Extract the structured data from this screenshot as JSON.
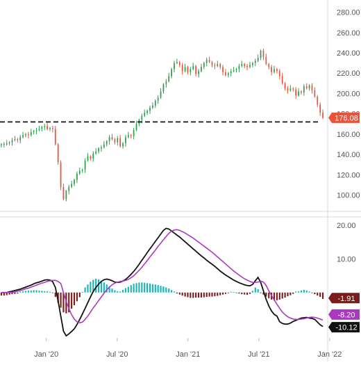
{
  "chart_data": [
    {
      "type": "candlestick",
      "panel": "price",
      "y_ticks": [
        100,
        120,
        140,
        160,
        180,
        200,
        220,
        240,
        260,
        280
      ],
      "y_tick_labels": [
        "100.00",
        "120.00",
        "140.00",
        "160.00",
        "180.00",
        "200.00",
        "220.00",
        "240.00",
        "260.00",
        "280.00"
      ],
      "ylim": [
        84,
        292
      ],
      "last_price": 176.08,
      "last_price_label": "176.08",
      "support_level": 172,
      "colors": {
        "up": "#2e9b4e",
        "down": "#e8533a",
        "support": "#111111",
        "last_badge": "#e8533a"
      },
      "series_close": [
        150,
        150,
        151,
        152,
        154,
        155,
        154,
        157,
        159,
        160,
        159,
        162,
        163,
        164,
        165,
        167,
        168,
        165,
        166,
        165,
        150,
        132,
        108,
        96,
        104,
        108,
        111,
        115,
        121,
        124,
        125,
        134,
        138,
        136,
        141,
        143,
        146,
        147,
        150,
        153,
        157,
        155,
        152,
        156,
        148,
        151,
        157,
        159,
        158,
        164,
        170,
        174,
        178,
        181,
        183,
        186,
        188,
        193,
        196,
        202,
        209,
        212,
        217,
        224,
        230,
        231,
        228,
        222,
        226,
        221,
        224,
        227,
        219,
        222,
        226,
        230,
        233,
        231,
        228,
        227,
        229,
        226,
        221,
        218,
        220,
        222,
        223,
        224,
        227,
        229,
        227,
        226,
        228,
        230,
        232,
        235,
        242,
        236,
        229,
        226,
        221,
        224,
        222,
        217,
        210,
        205,
        203,
        205,
        204,
        198,
        202,
        201,
        207,
        205,
        208,
        203,
        197,
        189,
        181,
        176.08
      ]
    },
    {
      "type": "macd",
      "panel": "indicator",
      "y_ticks": [
        -10,
        0,
        10,
        20
      ],
      "y_tick_labels": [
        "-10.00",
        "0.00",
        "10.00",
        "20.00"
      ],
      "ylim": [
        -13.5,
        22.5
      ],
      "macd_label": "-10.12",
      "signal_label": "-8.20",
      "histogram_label": "-1.91",
      "colors": {
        "macd": "#111111",
        "signal": "#a93ac0",
        "hist_pos": "#1ab5b5",
        "hist_neg": "#7b1d1d"
      },
      "macd": [
        0.0,
        0.0,
        0.0,
        0.2,
        0.4,
        0.6,
        0.8,
        1.0,
        1.3,
        1.6,
        1.9,
        2.2,
        2.6,
        2.9,
        3.1,
        3.4,
        3.7,
        3.8,
        3.7,
        3.2,
        1.5,
        -2.5,
        -7.0,
        -11.5,
        -12.9,
        -12.3,
        -11.6,
        -10.8,
        -9.5,
        -8.0,
        -6.4,
        -4.7,
        -3.0,
        -1.3,
        0.3,
        1.5,
        2.5,
        3.3,
        3.8,
        4.0,
        3.8,
        3.5,
        3.1,
        3.0,
        3.1,
        3.4,
        3.9,
        4.6,
        5.4,
        6.3,
        7.3,
        8.4,
        9.6,
        10.7,
        11.9,
        13.0,
        14.1,
        15.2,
        16.3,
        17.4,
        18.5,
        19.1,
        18.9,
        18.3,
        17.7,
        17.1,
        16.5,
        15.8,
        15.1,
        14.4,
        13.7,
        13.0,
        12.3,
        11.6,
        10.9,
        10.3,
        9.6,
        9.0,
        8.4,
        7.8,
        7.1,
        6.4,
        5.8,
        5.2,
        4.7,
        4.2,
        3.7,
        3.3,
        2.9,
        2.6,
        2.3,
        2.1,
        2.0,
        2.4,
        3.5,
        4.5,
        3.0,
        0.5,
        -2.0,
        -4.0,
        -5.5,
        -6.5,
        -7.0,
        -8.7,
        -9.2,
        -9.4,
        -9.4,
        -9.1,
        -8.6,
        -8.3,
        -7.9,
        -7.6,
        -7.5,
        -7.4,
        -7.6,
        -7.7,
        -8.0,
        -8.8,
        -9.6,
        -10.12
      ],
      "signal": [
        0.0,
        0.0,
        0.0,
        0.0,
        0.1,
        0.2,
        0.4,
        0.6,
        0.8,
        1.1,
        1.3,
        1.6,
        1.9,
        2.2,
        2.5,
        2.8,
        3.0,
        3.3,
        3.5,
        3.6,
        3.6,
        3.3,
        2.7,
        0.0,
        -2.6,
        -4.8,
        -6.6,
        -7.9,
        -8.7,
        -9.0,
        -8.8,
        -8.0,
        -7.0,
        -5.8,
        -4.6,
        -3.5,
        -2.4,
        -1.3,
        -0.2,
        0.8,
        1.6,
        2.3,
        2.8,
        3.1,
        3.3,
        3.4,
        3.6,
        3.9,
        4.4,
        5.0,
        5.8,
        6.6,
        7.5,
        8.5,
        9.5,
        10.6,
        11.6,
        12.6,
        13.7,
        14.7,
        15.7,
        16.7,
        17.6,
        18.3,
        18.6,
        18.7,
        18.5,
        18.1,
        17.7,
        17.2,
        16.7,
        16.2,
        15.6,
        15.0,
        14.4,
        13.8,
        13.2,
        12.6,
        12.0,
        11.3,
        10.6,
        9.9,
        9.2,
        8.5,
        7.8,
        7.1,
        6.4,
        5.8,
        5.2,
        4.6,
        4.1,
        3.7,
        3.3,
        3.0,
        3.0,
        3.1,
        3.4,
        3.1,
        2.1,
        0.5,
        -0.9,
        -2.2,
        -3.5,
        -4.7,
        -5.8,
        -6.6,
        -7.2,
        -7.6,
        -7.9,
        -8.0,
        -8.0,
        -7.9,
        -7.8,
        -7.6,
        -7.4,
        -7.3,
        -7.4,
        -7.6,
        -7.9,
        -8.2
      ],
      "histogram": [
        -0.9,
        -0.9,
        -0.8,
        -0.6,
        -0.5,
        -0.4,
        -0.3,
        0.3,
        0.4,
        0.5,
        0.6,
        0.6,
        0.7,
        0.7,
        0.6,
        0.5,
        0.4,
        0.4,
        0.2,
        -0.1,
        -1.3,
        -3.0,
        -4.5,
        -5.9,
        -6.2,
        -5.9,
        -4.8,
        -3.8,
        -2.6,
        -1.4,
        0.2,
        1.5,
        2.4,
        3.2,
        3.8,
        4.1,
        3.9,
        3.5,
        3.0,
        2.4,
        1.8,
        1.2,
        0.7,
        0.4,
        0.3,
        0.8,
        1.3,
        1.7,
        2.2,
        2.6,
        2.8,
        3.0,
        3.0,
        2.9,
        2.8,
        2.7,
        2.5,
        2.4,
        2.2,
        2.0,
        1.8,
        1.5,
        1.2,
        0.7,
        0.3,
        -0.3,
        -0.6,
        -0.9,
        -1.2,
        -1.4,
        -1.6,
        -1.6,
        -1.5,
        -1.5,
        -1.5,
        -1.4,
        -1.3,
        -1.2,
        -1.2,
        -1.1,
        -1.0,
        -0.8,
        -0.6,
        -0.4,
        -0.2,
        0.2,
        0.1,
        -0.1,
        -0.3,
        -0.5,
        -0.6,
        -0.7,
        -0.4,
        0.5,
        1.5,
        1.0,
        -0.2,
        -0.6,
        -1.2,
        -1.7,
        -2.1,
        -2.4,
        -2.3,
        -2.1,
        -1.8,
        -1.5,
        -1.1,
        -0.8,
        -0.4,
        0.3,
        0.4,
        0.6,
        0.8,
        0.6,
        0.3,
        -0.1,
        -0.5,
        -0.9,
        -1.3,
        -1.91
      ]
    }
  ],
  "x_axis": {
    "start_index": -17,
    "end_index": 102,
    "ticks": [
      {
        "label": "Jan '20",
        "index": 0
      },
      {
        "label": "Jul '20",
        "index": 26
      },
      {
        "label": "Jan '21",
        "index": 52
      },
      {
        "label": "Jul '21",
        "index": 78
      },
      {
        "label": "Jan '22",
        "index": 104
      }
    ]
  }
}
